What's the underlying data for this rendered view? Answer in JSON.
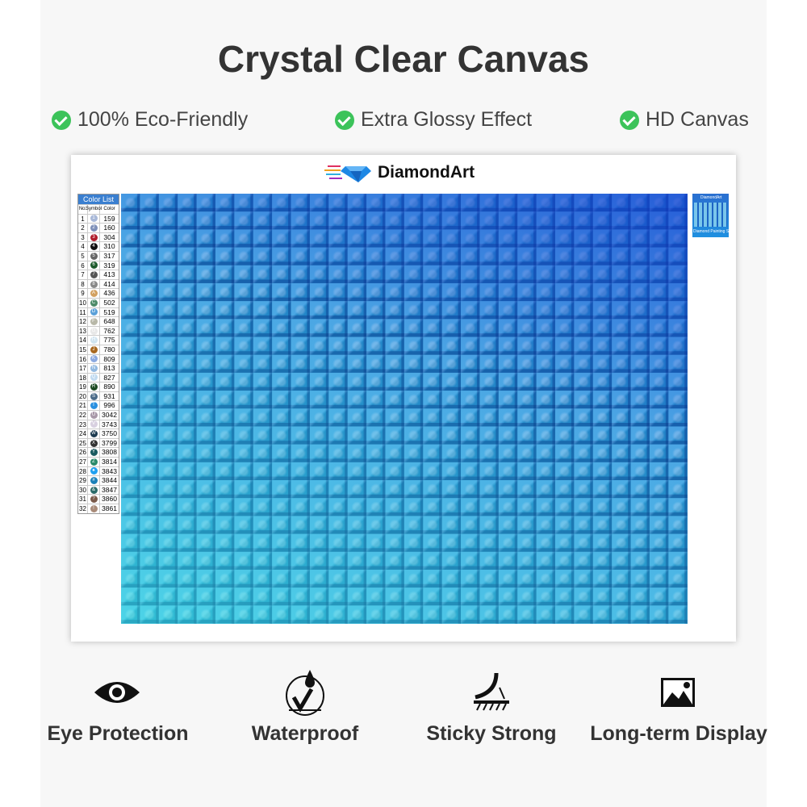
{
  "title": "Crystal Clear Canvas",
  "features": [
    "100% Eco-Friendly",
    "Extra Glossy Effect",
    "HD Canvas"
  ],
  "logo": "DiamondArt",
  "color_list": {
    "title": "Color List",
    "headers": [
      "No.",
      "Symbol",
      "Color"
    ],
    "rows": [
      [
        "1",
        "1",
        "159",
        "#a8b8d8"
      ],
      [
        "2",
        "2",
        "160",
        "#7d8fb8"
      ],
      [
        "3",
        "3",
        "304",
        "#b01c2a"
      ],
      [
        "4",
        "4",
        "310",
        "#111111"
      ],
      [
        "5",
        "5",
        "317",
        "#666666"
      ],
      [
        "6",
        "6",
        "319",
        "#1d5a2c"
      ],
      [
        "7",
        "7",
        "413",
        "#555555"
      ],
      [
        "8",
        "8",
        "414",
        "#888888"
      ],
      [
        "9",
        "A",
        "436",
        "#d2a060"
      ],
      [
        "10",
        "C",
        "502",
        "#4c8a68"
      ],
      [
        "11",
        "D",
        "519",
        "#5aa0d8"
      ],
      [
        "12",
        "F",
        "648",
        "#b8b8a8"
      ],
      [
        "13",
        "G",
        "762",
        "#e8e8e8"
      ],
      [
        "14",
        "H",
        "775",
        "#d0e4f0"
      ],
      [
        "15",
        "J",
        "780",
        "#a86820"
      ],
      [
        "16",
        "K",
        "809",
        "#8aa8e0"
      ],
      [
        "17",
        "N",
        "813",
        "#90b8e0"
      ],
      [
        "18",
        "Q",
        "827",
        "#c0daf0"
      ],
      [
        "19",
        "R",
        "890",
        "#1c4a22"
      ],
      [
        "20",
        "S",
        "931",
        "#4a6a88"
      ],
      [
        "21",
        "T",
        "996",
        "#2a90e0"
      ],
      [
        "22",
        "U",
        "3042",
        "#a898a8"
      ],
      [
        "23",
        "V",
        "3743",
        "#d8d0e0"
      ],
      [
        "24",
        "W",
        "3750",
        "#1c3a50"
      ],
      [
        "25",
        "X",
        "3799",
        "#333333"
      ],
      [
        "26",
        "Y",
        "3808",
        "#1a5a60"
      ],
      [
        "27",
        "Z",
        "3814",
        "#2a8a6a"
      ],
      [
        "28",
        "♠",
        "3843",
        "#20a0f0"
      ],
      [
        "29",
        "#",
        "3844",
        "#1a80b8"
      ],
      [
        "30",
        "&",
        "3847",
        "#2a6a68"
      ],
      [
        "31",
        "?",
        "3860",
        "#7a5a4a"
      ],
      [
        "32",
        "!",
        "3861",
        "#a88a78"
      ]
    ]
  },
  "thumbnail": {
    "logo": "DiamondArt",
    "caption": "Diamond Painting Set"
  },
  "bottom_features": [
    {
      "label": "Eye Protection",
      "icon": "eye-icon"
    },
    {
      "label": "Waterproof",
      "icon": "water-drop-check-icon"
    },
    {
      "label": "Sticky Strong",
      "icon": "adhesive-peel-icon"
    },
    {
      "label": "Long-term Display",
      "icon": "image-icon"
    }
  ]
}
